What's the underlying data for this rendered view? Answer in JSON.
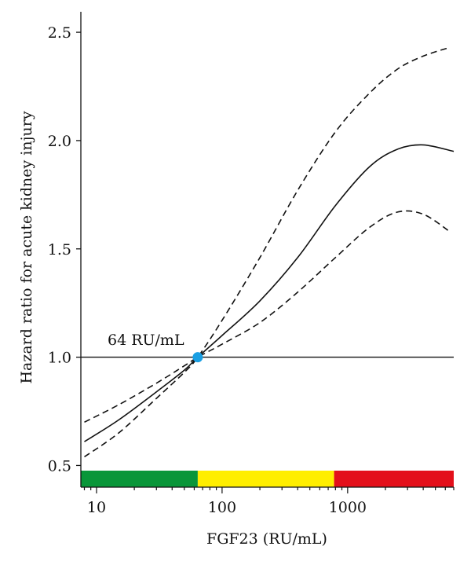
{
  "chart_data": {
    "type": "line",
    "xlabel": "FGF23 (RU/mL)",
    "ylabel": "Hazard ratio for acute kidney injury",
    "x_scale": "log",
    "xlim": [
      7.5,
      7000
    ],
    "ylim": [
      0.4,
      2.62
    ],
    "x_ticks": [
      10,
      100,
      1000
    ],
    "x_tick_labels": [
      "10",
      "100",
      "1000"
    ],
    "y_ticks": [
      0.5,
      1.0,
      1.5,
      2.0,
      2.5
    ],
    "y_tick_labels": [
      "0.5",
      "1.0",
      "1.5",
      "2.0",
      "2.5"
    ],
    "reference_line": 1.0,
    "grid": false,
    "series": [
      {
        "style": "solid",
        "x": [
          8,
          15,
          30,
          50,
          64,
          100,
          200,
          400,
          800,
          1500,
          2500,
          4000,
          7000
        ],
        "y": [
          0.61,
          0.71,
          0.84,
          0.94,
          1.0,
          1.1,
          1.26,
          1.46,
          1.7,
          1.88,
          1.96,
          1.98,
          1.95
        ]
      },
      {
        "style": "dashed",
        "x": [
          8,
          15,
          30,
          50,
          64,
          100,
          200,
          400,
          800,
          1500,
          2500,
          4000,
          6500
        ],
        "y": [
          0.54,
          0.65,
          0.81,
          0.93,
          1.0,
          1.17,
          1.46,
          1.77,
          2.04,
          2.22,
          2.33,
          2.39,
          2.43
        ]
      },
      {
        "style": "dashed",
        "x": [
          8,
          15,
          30,
          50,
          64,
          100,
          200,
          400,
          800,
          1500,
          2500,
          4000,
          6500
        ],
        "y": [
          0.7,
          0.78,
          0.88,
          0.96,
          1.0,
          1.06,
          1.16,
          1.3,
          1.46,
          1.6,
          1.67,
          1.66,
          1.58
        ]
      }
    ],
    "highlight_point": {
      "x": 64,
      "y": 1.0,
      "label": "64 RU/mL",
      "color": "#1a9fe3"
    },
    "color_bar": [
      {
        "from": 7.5,
        "to": 64,
        "color": "#099639"
      },
      {
        "from": 64,
        "to": 780,
        "color": "#ffee00"
      },
      {
        "from": 780,
        "to": 7000,
        "color": "#e3101b"
      }
    ]
  }
}
